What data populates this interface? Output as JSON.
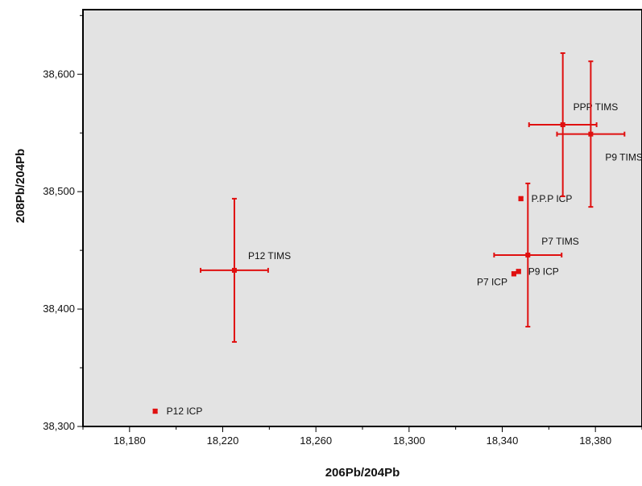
{
  "chart_data": {
    "type": "scatter",
    "title": "",
    "xlabel": "206Pb/204Pb",
    "ylabel": "208Pb/204Pb",
    "xlim": [
      18160,
      18400
    ],
    "ylim": [
      38300,
      38655
    ],
    "x_ticks": [
      18180,
      18220,
      18260,
      18300,
      18340,
      18380
    ],
    "x_tick_labels": [
      "18,180",
      "18,220",
      "18,260",
      "18,300",
      "18,340",
      "18,380"
    ],
    "y_ticks": [
      38300,
      38400,
      38500,
      38600
    ],
    "y_tick_labels": [
      "38,300",
      "38,400",
      "38,500",
      "38,600"
    ],
    "grid": false,
    "background": "#e3e3e3",
    "series_color": "#e01010",
    "points": [
      {
        "label": "P12 ICP",
        "x": 18191,
        "y": 38313,
        "xerr": 0.6,
        "yerr": 1.5
      },
      {
        "label": "P12 TIMS",
        "x": 18225,
        "y": 38433,
        "xerr": 14.5,
        "yerr": 61
      },
      {
        "label": "P7 ICP",
        "x": 18345,
        "y": 38430,
        "xerr": 0.7,
        "yerr": 1.5
      },
      {
        "label": "P9 ICP",
        "x": 18347,
        "y": 38432,
        "xerr": 0.7,
        "yerr": 1.5
      },
      {
        "label": "P.P.P ICP",
        "x": 18348,
        "y": 38494,
        "xerr": 0.7,
        "yerr": 1.5
      },
      {
        "label": "P7 TIMS",
        "x": 18351,
        "y": 38446,
        "xerr": 14.5,
        "yerr": 61
      },
      {
        "label": "PPP TIMS",
        "x": 18366,
        "y": 38557,
        "xerr": 14.5,
        "yerr": 61
      },
      {
        "label": "P9 TIMS",
        "x": 18378,
        "y": 38549,
        "xerr": 14.5,
        "yerr": 62
      }
    ]
  }
}
